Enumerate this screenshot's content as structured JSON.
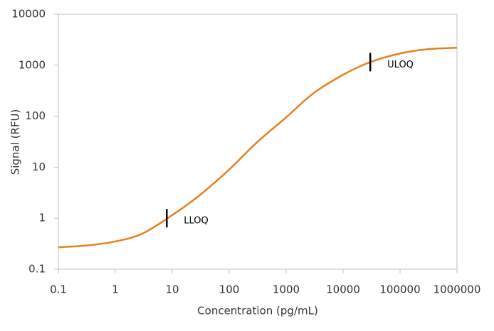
{
  "chart_data": {
    "type": "line",
    "xlabel": "Concentration (pg/mL)",
    "ylabel": "Signal (RFU)",
    "x": [
      0.1,
      0.3,
      1,
      3,
      10,
      30,
      100,
      300,
      1000,
      3000,
      10000,
      30000,
      100000,
      300000,
      1000000
    ],
    "values": [
      0.27,
      0.29,
      0.35,
      0.5,
      1.15,
      2.8,
      9,
      30,
      95,
      280,
      650,
      1150,
      1700,
      2050,
      2200
    ],
    "color": "#e8801f",
    "xscale": "log",
    "yscale": "log",
    "xlim": [
      0.1,
      1000000
    ],
    "xticks": [
      0.1,
      1,
      10,
      100,
      1000,
      10000,
      100000,
      1000000
    ],
    "ylim": [
      0.1,
      10000
    ],
    "yticks": [
      0.1,
      1,
      10,
      100,
      1000,
      10000
    ],
    "grid": false,
    "annotations": [
      {
        "text": "LLOQ",
        "x": 8,
        "y": 1
      },
      {
        "text": "ULOQ",
        "x": 30000,
        "y": 1150
      }
    ]
  }
}
